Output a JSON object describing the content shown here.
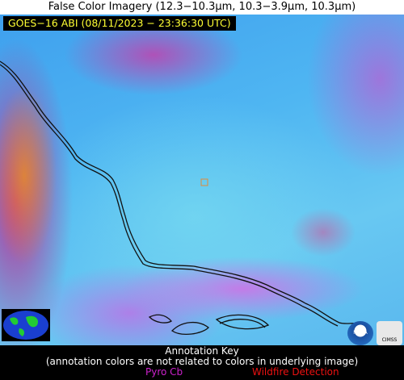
{
  "title": "False Color Imagery (12.3−10.3µm, 10.3−3.9µm, 10.3µm)",
  "header": "GOES−16 ABI (08/11/2023 − 23:36:30 UTC)",
  "logos": [
    "NOAA",
    "CIMSS"
  ],
  "key": {
    "title": "Annotation Key",
    "note": "(annotation colors are not related to colors in underlying image)",
    "items": [
      {
        "label": "Pyro Cb",
        "color": "#cc22cc"
      },
      {
        "label": "Wildfire Detection",
        "color": "#ee1111"
      }
    ]
  }
}
